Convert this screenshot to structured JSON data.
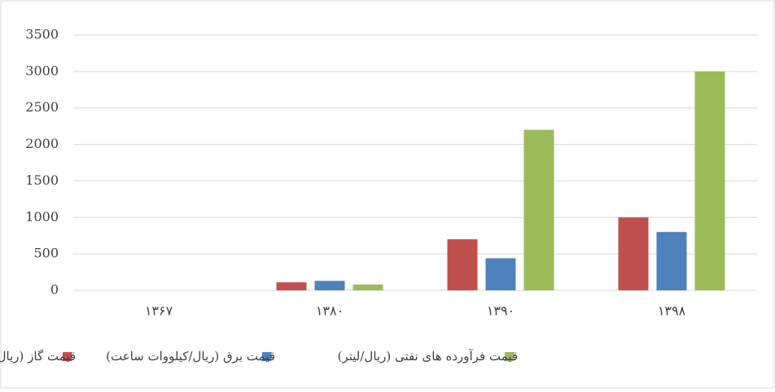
{
  "chart_data": {
    "type": "bar",
    "categories": [
      "۱۳۶۷",
      "۱۳۸۰",
      "۱۳۹۰",
      "۱۳۹۸"
    ],
    "series": [
      {
        "name": "قیمت گاز (ریال/ متر مکعب)",
        "color": "#c0504d",
        "values": [
          0,
          110,
          700,
          1000
        ]
      },
      {
        "name": "قیمت برق (ریال/کیلووات ساعت)",
        "color": "#4f81bd",
        "values": [
          0,
          130,
          440,
          800
        ]
      },
      {
        "name": "قیمت فرآورده های نفتی (ریال/لیتر)",
        "color": "#9bbb59",
        "values": [
          0,
          80,
          2200,
          3000
        ]
      }
    ],
    "ylim": [
      0,
      3500
    ],
    "yticks": [
      0,
      500,
      1000,
      1500,
      2000,
      2500,
      3000,
      3500
    ],
    "grid": true,
    "legend": "bottom"
  }
}
